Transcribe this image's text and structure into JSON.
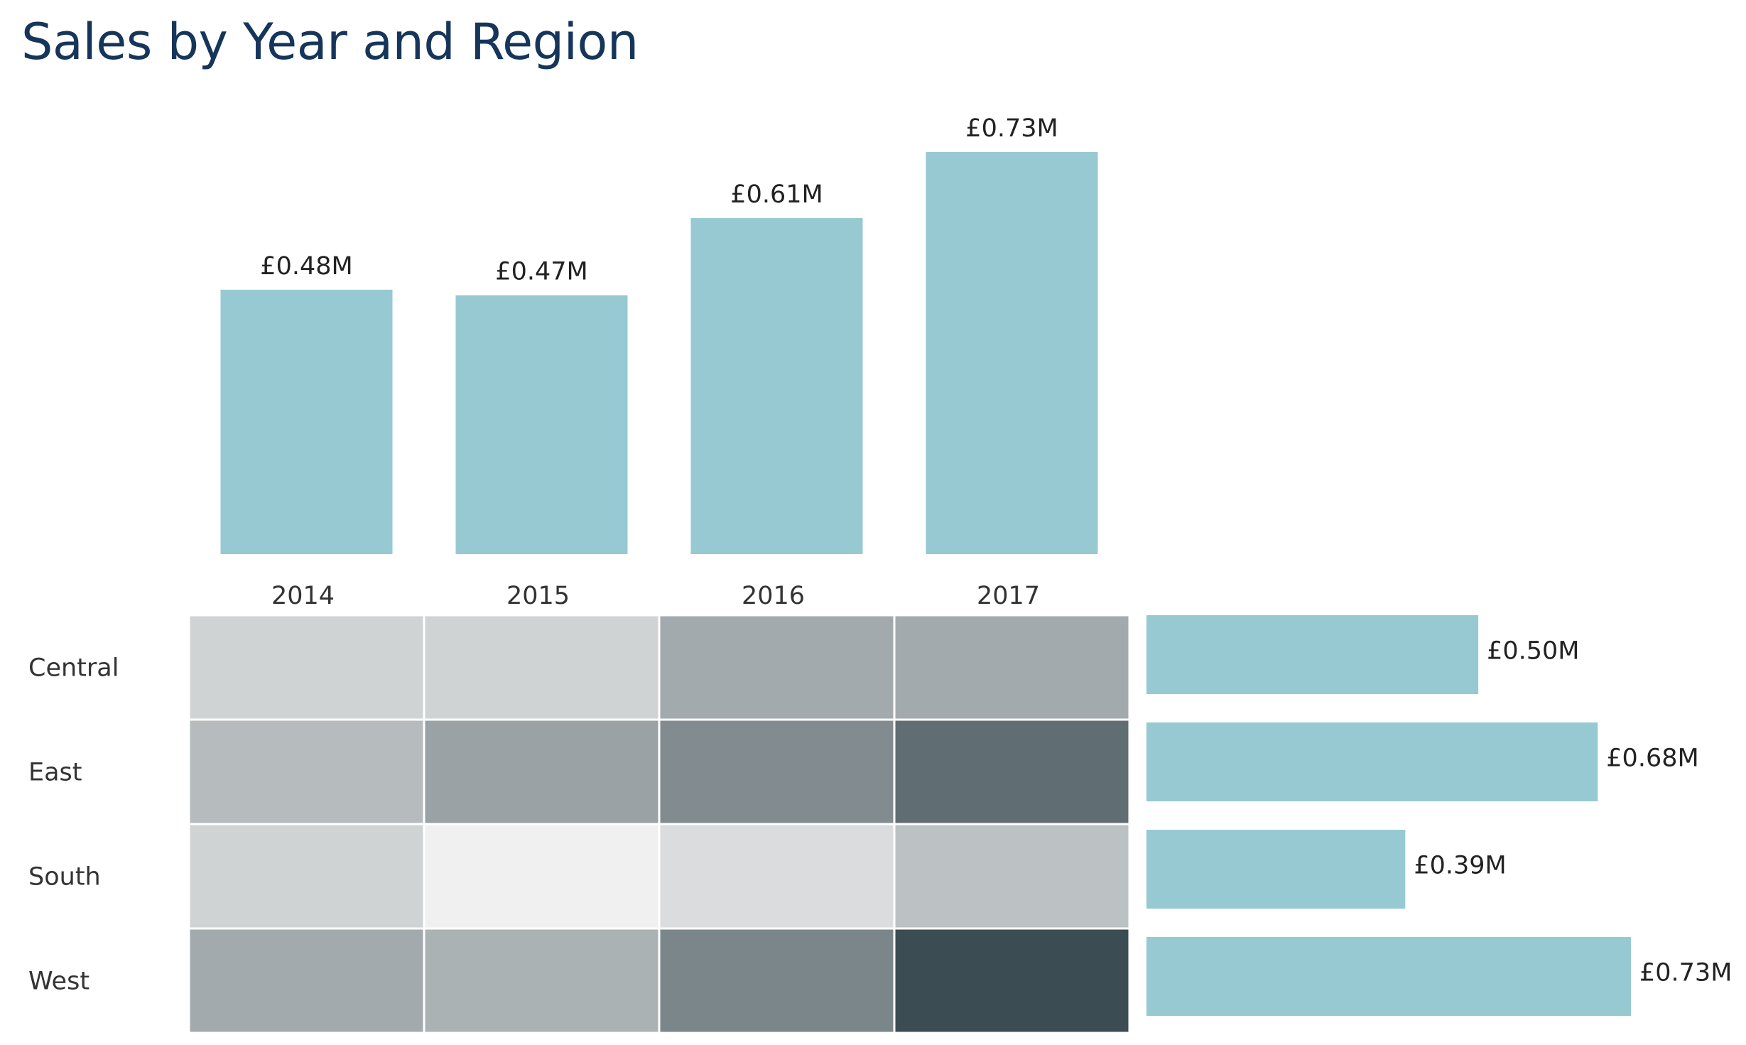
{
  "title": "Sales by Year and Region",
  "colors": {
    "title": "#16355a",
    "bar": "#96c9d2",
    "heat_low": "#f0f0f0",
    "heat_high": "#3b4c52",
    "cell_border": "#ffffff"
  },
  "chart_data": [
    {
      "type": "bar",
      "name": "sales-by-year",
      "categories": [
        "2014",
        "2015",
        "2016",
        "2017"
      ],
      "values": [
        0.48,
        0.47,
        0.61,
        0.73
      ],
      "value_labels": [
        "£0.48M",
        "£0.47M",
        "£0.61M",
        "£0.73M"
      ],
      "ylim": [
        0,
        0.73
      ],
      "grid": false
    },
    {
      "type": "heatmap",
      "name": "sales-by-year-and-region",
      "columns": [
        "2014",
        "2015",
        "2016",
        "2017"
      ],
      "rows": [
        "Central",
        "East",
        "South",
        "West"
      ],
      "values": [
        [
          0.103,
          0.103,
          0.147,
          0.147
        ],
        [
          0.128,
          0.156,
          0.18,
          0.213
        ],
        [
          0.103,
          0.071,
          0.093,
          0.122
        ],
        [
          0.147,
          0.139,
          0.187,
          0.25
        ]
      ],
      "range": [
        0.071,
        0.25
      ]
    },
    {
      "type": "bar",
      "orientation": "horizontal",
      "name": "sales-by-region",
      "categories": [
        "Central",
        "East",
        "South",
        "West"
      ],
      "values": [
        0.5,
        0.68,
        0.39,
        0.73
      ],
      "value_labels": [
        "£0.50M",
        "£0.68M",
        "£0.39M",
        "£0.73M"
      ],
      "xlim": [
        0,
        0.73
      ],
      "grid": false
    }
  ]
}
